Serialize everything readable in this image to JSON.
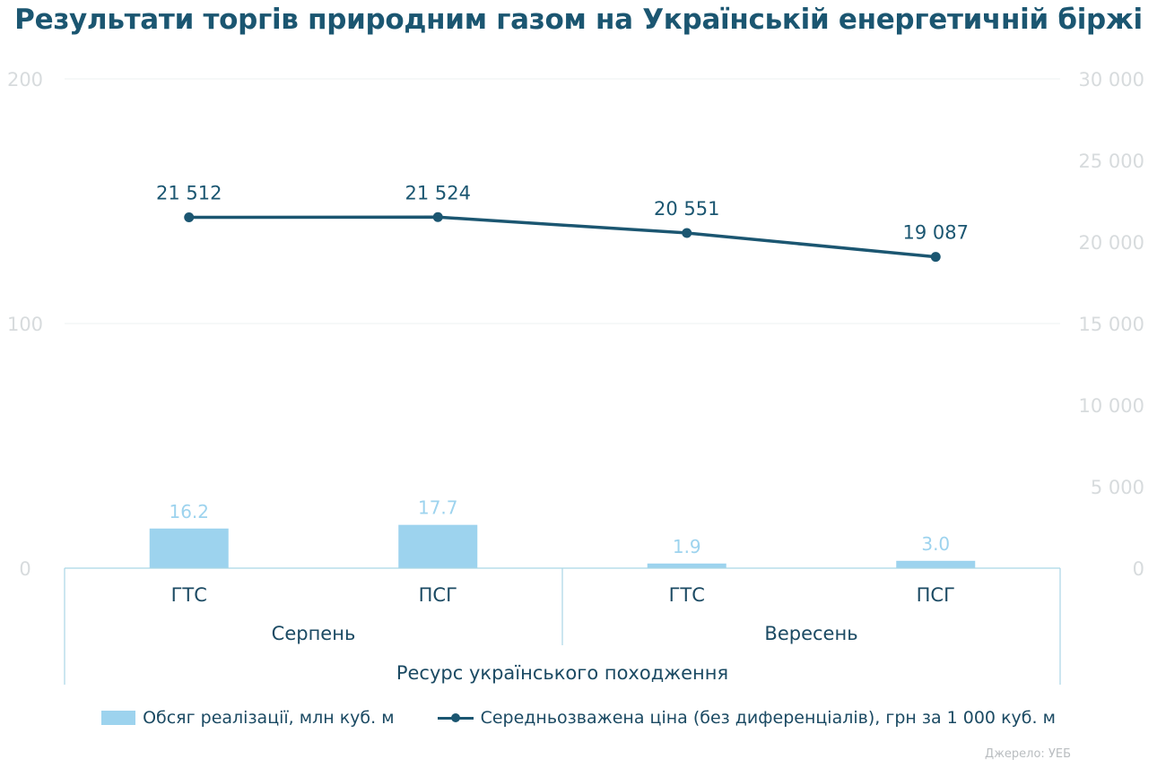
{
  "title": "Результати торгів природним газом на Українській енергетичній біржі",
  "source": "Джерело: УЕБ",
  "colors": {
    "bar": "#9dd3ee",
    "line": "#1b5671",
    "axis_text": "#d7dbdd",
    "grid": "#eef1f2",
    "frame": "#a9d6e5"
  },
  "chart_data": {
    "type": "bar+line",
    "categories": [
      "ГТС",
      "ПСГ",
      "ГТС",
      "ПСГ"
    ],
    "groups": [
      {
        "label": "Серпень",
        "span": 2
      },
      {
        "label": "Вересень",
        "span": 2
      }
    ],
    "super_group": "Ресурс українського походження",
    "series": [
      {
        "name": "Обсяг реалізації, млн куб. м",
        "type": "bar",
        "axis": "left",
        "values": [
          16.2,
          17.7,
          1.9,
          3.0
        ],
        "labels": [
          "16.2",
          "17.7",
          "1.9",
          "3.0"
        ]
      },
      {
        "name": "Середньозважена ціна (без диференціалів), грн за 1 000 куб. м",
        "type": "line",
        "axis": "right",
        "values": [
          21512,
          21524,
          20551,
          19087
        ],
        "labels": [
          "21 512",
          "21 524",
          "20 551",
          "19 087"
        ]
      }
    ],
    "y_left": {
      "min": 0,
      "max": 200,
      "ticks": [
        0,
        100,
        200
      ],
      "tick_labels": [
        "0",
        "100",
        "200"
      ]
    },
    "y_right": {
      "min": 0,
      "max": 30000,
      "ticks": [
        0,
        5000,
        10000,
        15000,
        20000,
        25000,
        30000
      ],
      "tick_labels": [
        "0",
        "5 000",
        "10 000",
        "15 000",
        "20 000",
        "25 000",
        "30 000"
      ]
    },
    "grid": true,
    "legend_position": "bottom"
  }
}
